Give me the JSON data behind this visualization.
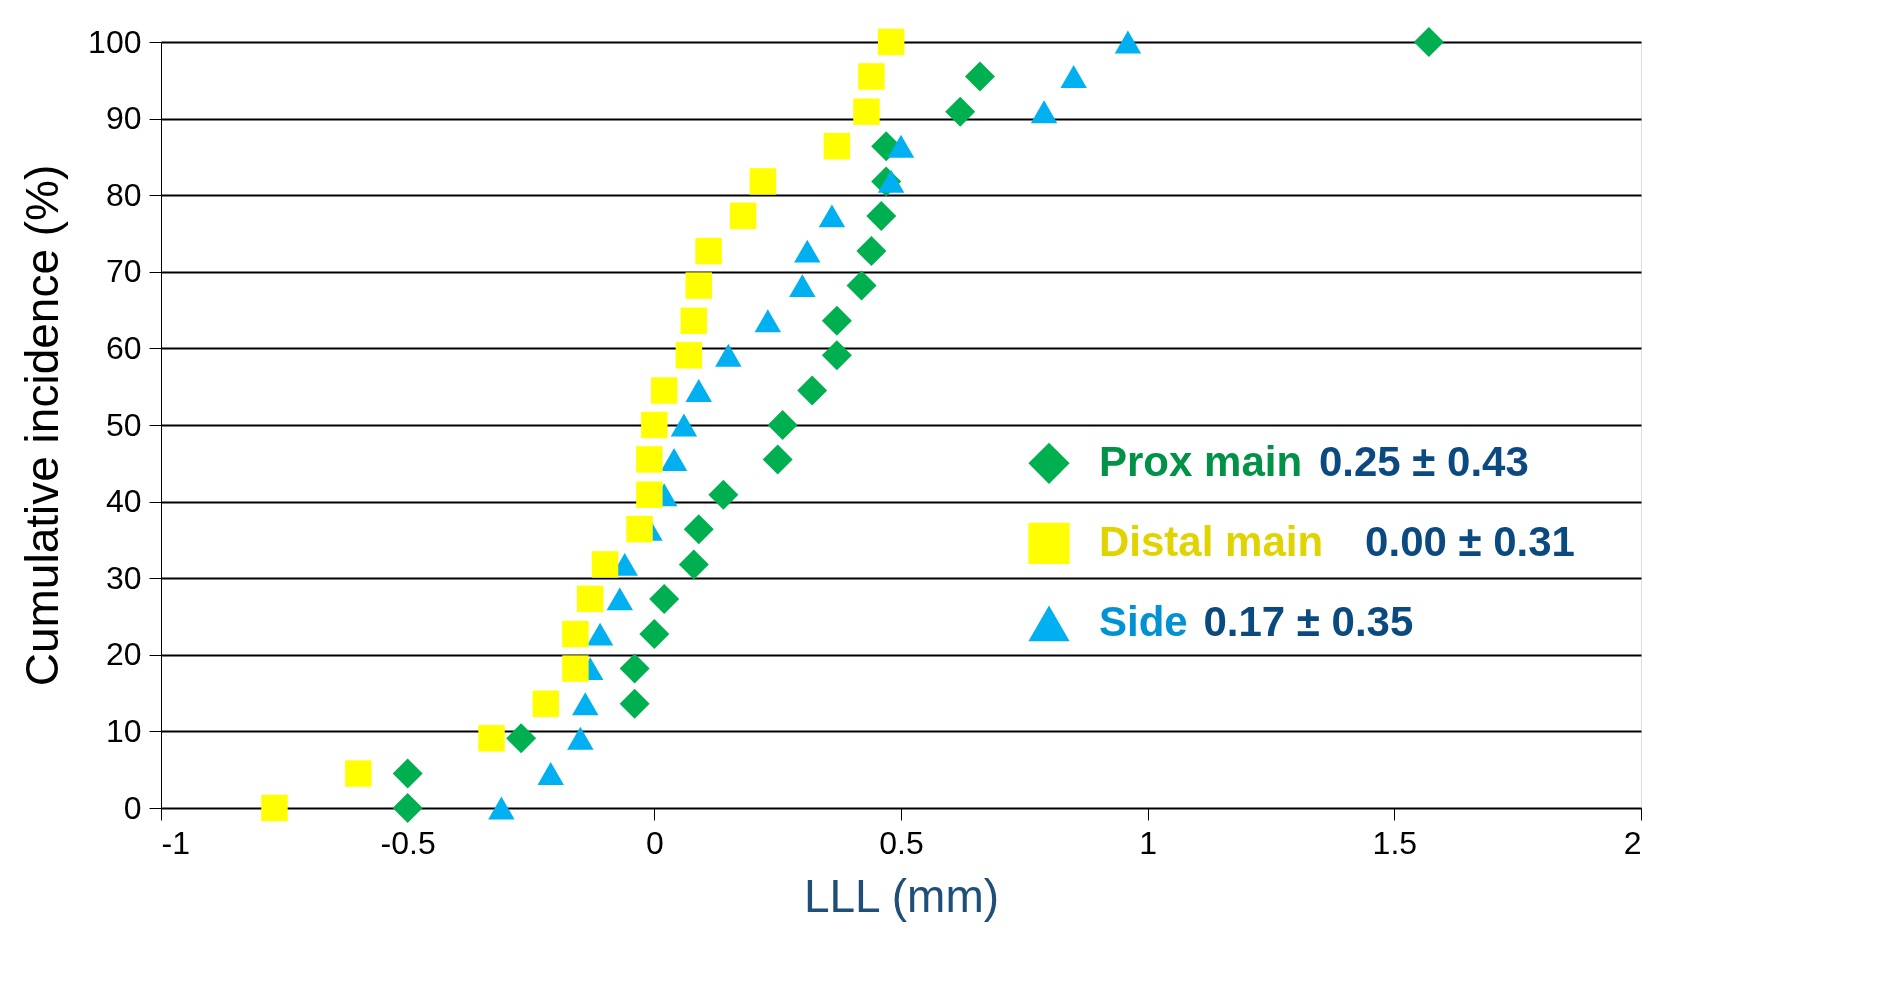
{
  "chart_data": {
    "type": "scatter",
    "xlabel": "LLL (mm)",
    "ylabel": "Cumulative incidence (%)",
    "xlim": [
      -1,
      2
    ],
    "xticks": [
      -1,
      -0.5,
      0,
      0.5,
      1,
      1.5,
      2
    ],
    "ylim": [
      0,
      100
    ],
    "yticks": [
      0,
      10,
      20,
      30,
      40,
      50,
      60,
      70,
      80,
      90,
      100
    ],
    "grid": "y",
    "legend": "bottom right",
    "annotations": [
      "0.25 ± 0.43",
      "0.00 ± 0.31",
      "0.17 ± 0.35"
    ],
    "series": [
      {
        "name": "Prox main",
        "color": "#00b050",
        "marker": "diamond",
        "x": [
          -0.5,
          -0.5,
          -0.27,
          -0.04,
          -0.04,
          0.0,
          0.02,
          0.08,
          0.09,
          0.14,
          0.25,
          0.26,
          0.32,
          0.37,
          0.37,
          0.42,
          0.44,
          0.46,
          0.47,
          0.47,
          0.62,
          0.66,
          1.57
        ],
        "values": [
          0,
          4.5,
          9.1,
          13.6,
          18.2,
          22.7,
          27.3,
          31.8,
          36.4,
          40.9,
          45.5,
          50,
          54.5,
          59.1,
          63.6,
          68.2,
          72.7,
          77.3,
          81.8,
          86.4,
          90.9,
          95.5,
          100
        ]
      },
      {
        "name": "Distal main",
        "color": "#ffff00",
        "marker": "square",
        "x": [
          -0.77,
          -0.6,
          -0.33,
          -0.22,
          -0.16,
          -0.16,
          -0.13,
          -0.1,
          -0.03,
          -0.01,
          -0.01,
          0.0,
          0.02,
          0.07,
          0.08,
          0.09,
          0.11,
          0.18,
          0.22,
          0.37,
          0.43,
          0.44,
          0.48
        ],
        "values": [
          0,
          4.5,
          9.1,
          13.6,
          18.2,
          22.7,
          27.3,
          31.8,
          36.4,
          40.9,
          45.5,
          50,
          54.5,
          59.1,
          63.6,
          68.2,
          72.7,
          77.3,
          81.8,
          86.4,
          90.9,
          95.5,
          100
        ]
      },
      {
        "name": "Side",
        "color": "#00b0f0",
        "marker": "triangle",
        "x": [
          -0.31,
          -0.21,
          -0.15,
          -0.14,
          -0.13,
          -0.11,
          -0.07,
          -0.06,
          -0.01,
          0.02,
          0.04,
          0.06,
          0.09,
          0.15,
          0.23,
          0.3,
          0.31,
          0.36,
          0.48,
          0.5,
          0.79,
          0.85,
          0.96
        ],
        "values": [
          0,
          4.5,
          9.1,
          13.6,
          18.2,
          22.7,
          27.3,
          31.8,
          36.4,
          40.9,
          45.5,
          50,
          54.5,
          59.1,
          63.6,
          68.2,
          72.7,
          77.3,
          81.8,
          86.4,
          90.9,
          95.5,
          100
        ]
      }
    ]
  }
}
